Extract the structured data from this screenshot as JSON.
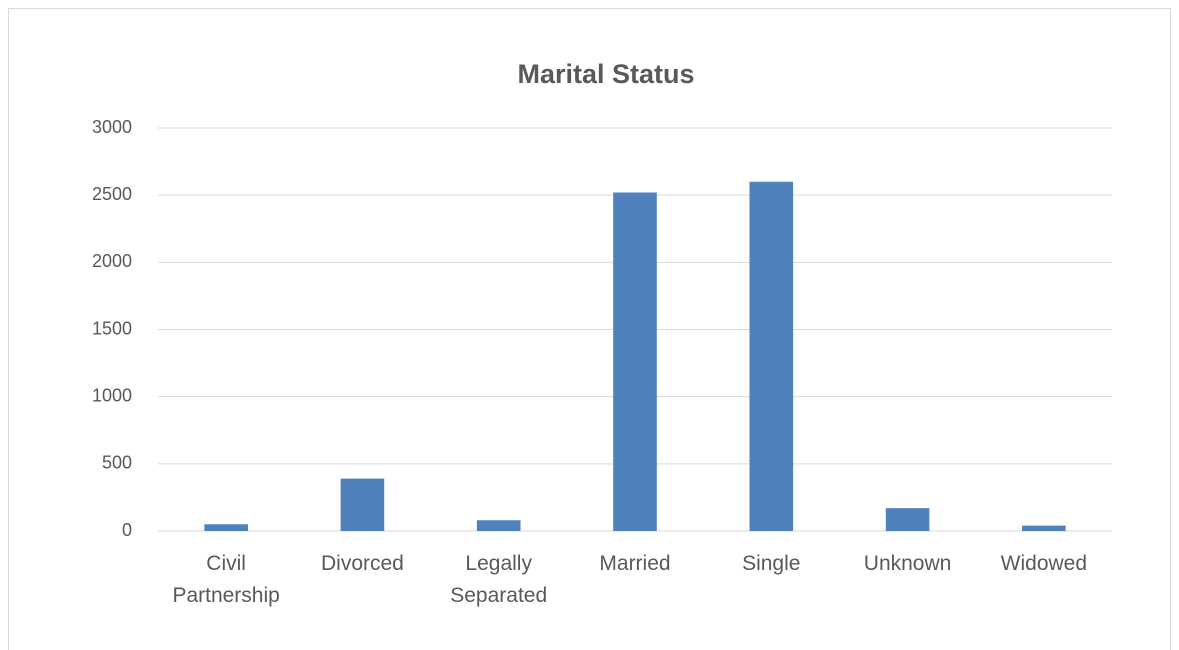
{
  "chart_data": {
    "type": "bar",
    "title": "Marital Status",
    "categories": [
      "Civil Partnership",
      "Divorced",
      "Legally Separated",
      "Married",
      "Single",
      "Unknown",
      "Widowed"
    ],
    "values": [
      50,
      390,
      80,
      2520,
      2600,
      170,
      40
    ],
    "color": "#4f81bd",
    "ylim": [
      0,
      3000
    ],
    "yticks": [
      0,
      500,
      1000,
      1500,
      2000,
      2500,
      3000
    ],
    "grid": true
  }
}
